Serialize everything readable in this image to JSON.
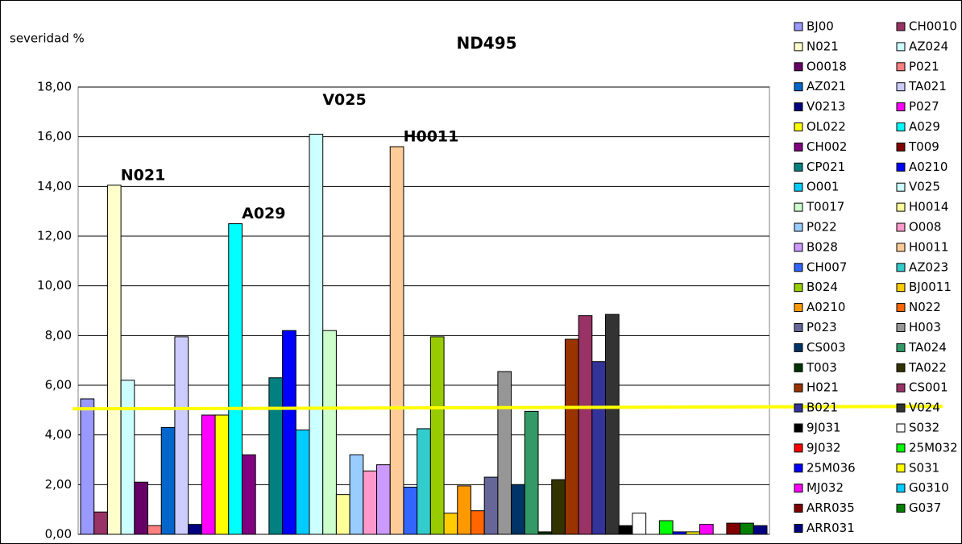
{
  "chart_data": {
    "type": "bar",
    "title": "ND495",
    "y_label": "severidad  %",
    "ylim": [
      0,
      18
    ],
    "yticks": [
      {
        "value": 0,
        "label": "0,00"
      },
      {
        "value": 2,
        "label": "2,00"
      },
      {
        "value": 4,
        "label": "4,00"
      },
      {
        "value": 6,
        "label": "6,00"
      },
      {
        "value": 8,
        "label": "8,00"
      },
      {
        "value": 10,
        "label": "10,00"
      },
      {
        "value": 12,
        "label": "12,00"
      },
      {
        "value": 14,
        "label": "14,00"
      },
      {
        "value": 16,
        "label": "16,00"
      },
      {
        "value": 18,
        "label": "18,00"
      }
    ],
    "grid": true,
    "legend": "right",
    "reference_line": {
      "start": 5.05,
      "end": 5.15,
      "color": "#ffff00"
    },
    "annotations": [
      {
        "text": "N021",
        "series": 2,
        "color": "#000000"
      },
      {
        "text": "A029",
        "series": 11,
        "color": "#000000"
      },
      {
        "text": "V025",
        "series": 17,
        "color": "#ff0000"
      },
      {
        "text": "H0011",
        "series": 23,
        "color": "#000000"
      }
    ],
    "series": [
      {
        "name": "BJ00",
        "color": "#9999ff",
        "values": [
          5.45
        ]
      },
      {
        "name": "CH0010",
        "color": "#993366",
        "values": [
          0.9
        ]
      },
      {
        "name": "N021",
        "color": "#ffffcc",
        "values": [
          14.05
        ]
      },
      {
        "name": "AZ024",
        "color": "#ccffff",
        "values": [
          6.2
        ]
      },
      {
        "name": "O0018",
        "color": "#660066",
        "values": [
          2.1
        ]
      },
      {
        "name": "P021",
        "color": "#ff8080",
        "values": [
          0.35
        ]
      },
      {
        "name": "AZ021",
        "color": "#0066cc",
        "values": [
          4.3
        ]
      },
      {
        "name": "TA021",
        "color": "#ccccff",
        "values": [
          7.95
        ]
      },
      {
        "name": "V0213",
        "color": "#000080",
        "values": [
          0.4
        ]
      },
      {
        "name": "P027",
        "color": "#ff00ff",
        "values": [
          4.8
        ]
      },
      {
        "name": "OL022",
        "color": "#ffff00",
        "values": [
          4.8
        ]
      },
      {
        "name": "A029",
        "color": "#00ffff",
        "values": [
          12.5
        ]
      },
      {
        "name": "CH002",
        "color": "#800080",
        "values": [
          3.2
        ]
      },
      {
        "name": "T009",
        "color": "#800000",
        "values": [
          0
        ]
      },
      {
        "name": "CP021",
        "color": "#008080",
        "values": [
          6.3
        ]
      },
      {
        "name": "A0210",
        "color": "#0000ff",
        "values": [
          8.2
        ]
      },
      {
        "name": "O001",
        "color": "#00ccff",
        "values": [
          4.2
        ]
      },
      {
        "name": "V025",
        "color": "#ccffff",
        "values": [
          16.1
        ]
      },
      {
        "name": "T0017",
        "color": "#ccffcc",
        "values": [
          8.2
        ]
      },
      {
        "name": "H0014",
        "color": "#ffff99",
        "values": [
          1.6
        ]
      },
      {
        "name": "P022",
        "color": "#99ccff",
        "values": [
          3.2
        ]
      },
      {
        "name": "O008",
        "color": "#ff99cc",
        "values": [
          2.55
        ]
      },
      {
        "name": "B028",
        "color": "#cc99ff",
        "values": [
          2.8
        ]
      },
      {
        "name": "H0011",
        "color": "#ffcc99",
        "values": [
          15.6
        ]
      },
      {
        "name": "CH007",
        "color": "#3366ff",
        "values": [
          1.9
        ]
      },
      {
        "name": "AZ023",
        "color": "#33cccc",
        "values": [
          4.25
        ]
      },
      {
        "name": "B024",
        "color": "#99cc00",
        "values": [
          7.95
        ]
      },
      {
        "name": "BJ0011",
        "color": "#ffcc00",
        "values": [
          0.85
        ]
      },
      {
        "name": "A0210",
        "color": "#ff9900",
        "values": [
          1.95
        ]
      },
      {
        "name": "N022",
        "color": "#ff6600",
        "values": [
          0.95
        ]
      },
      {
        "name": "P023",
        "color": "#666699",
        "values": [
          2.3
        ]
      },
      {
        "name": "H003",
        "color": "#969696",
        "values": [
          6.55
        ]
      },
      {
        "name": "CS003",
        "color": "#003366",
        "values": [
          2.0
        ]
      },
      {
        "name": "TA024",
        "color": "#339966",
        "values": [
          4.95
        ]
      },
      {
        "name": "T003",
        "color": "#003300",
        "values": [
          0.1
        ]
      },
      {
        "name": "TA022",
        "color": "#333300",
        "values": [
          2.2
        ]
      },
      {
        "name": "H021",
        "color": "#993300",
        "values": [
          7.85
        ]
      },
      {
        "name": "CS001",
        "color": "#993366",
        "values": [
          8.8
        ]
      },
      {
        "name": "B021",
        "color": "#333399",
        "values": [
          6.95
        ]
      },
      {
        "name": "V024",
        "color": "#333333",
        "values": [
          8.85
        ]
      },
      {
        "name": "9J031",
        "color": "#000000",
        "values": [
          0.35
        ]
      },
      {
        "name": "S032",
        "color": "#ffffff",
        "values": [
          0.85
        ]
      },
      {
        "name": "9J032",
        "color": "#ff0000",
        "values": [
          0
        ]
      },
      {
        "name": "25M032",
        "color": "#00ff00",
        "values": [
          0.55
        ]
      },
      {
        "name": "25M036",
        "color": "#0000ff",
        "values": [
          0.1
        ]
      },
      {
        "name": "S031",
        "color": "#ffff00",
        "values": [
          0.1
        ]
      },
      {
        "name": "MJ032",
        "color": "#ff00ff",
        "values": [
          0.4
        ]
      },
      {
        "name": "G0310",
        "color": "#00ccff",
        "values": [
          0
        ]
      },
      {
        "name": "ARR035",
        "color": "#800000",
        "values": [
          0.45
        ]
      },
      {
        "name": "G037",
        "color": "#008000",
        "values": [
          0.45
        ]
      },
      {
        "name": "ARR031",
        "color": "#000080",
        "values": [
          0.35
        ]
      }
    ]
  }
}
